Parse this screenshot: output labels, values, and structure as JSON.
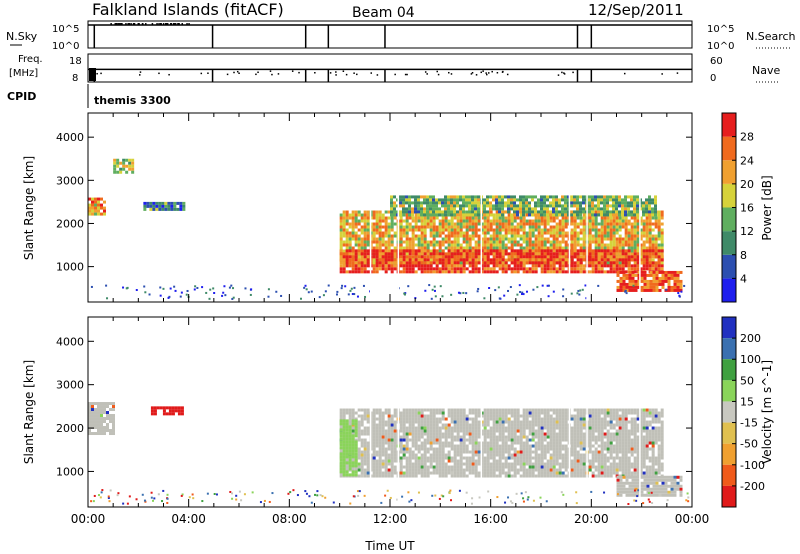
{
  "header": {
    "station": "Falkland Islands (fitACF)",
    "beam": "Beam 04",
    "date": "12/Sep/2011"
  },
  "left_labels": {
    "nsky": "N.Sky",
    "freq_line1": "Freq.",
    "freq_line2": "[MHz]",
    "cpid": "CPID"
  },
  "right_labels": {
    "nsearch": "N.Search",
    "nave": "Nave"
  },
  "noise_panel": {
    "left_ticks": [
      "10^5",
      "10^0"
    ],
    "right_ticks": [
      "10^5",
      "10^0"
    ],
    "sky_value_level": 0.85,
    "sky_dips_hours": [
      0.25,
      4.95,
      8.65,
      9.55,
      11.8,
      19.45,
      20.0
    ]
  },
  "freq_panel": {
    "left_ticks": [
      "18",
      "8"
    ],
    "right_ticks": [
      "60",
      "0"
    ],
    "freq_level": 0.45,
    "nave_level": 0.22,
    "dips_hours": [
      0.25,
      4.95,
      8.65,
      9.55,
      11.8,
      19.45,
      20.0
    ]
  },
  "cpid_panel": {
    "label": "themis 3300"
  },
  "colors": {
    "power": [
      "#1f1fee",
      "#2c4fb0",
      "#3f8a68",
      "#5fae5f",
      "#d6d23a",
      "#f0a030",
      "#f06a1e",
      "#e61e1e"
    ],
    "velocity": [
      "#e01a1a",
      "#f05a1a",
      "#f0a030",
      "#e0c050",
      "#c8c8c0",
      "#8ad45a",
      "#3fa040",
      "#3a70b0",
      "#2030c0"
    ],
    "ground_scatter": "#c0c0b8"
  },
  "chart_data": [
    {
      "type": "heatmap",
      "title": "",
      "xlabel": "Time UT",
      "ylabel": "Slant Range [km]",
      "x_ticks": [
        "00:00",
        "04:00",
        "08:00",
        "12:00",
        "16:00",
        "20:00",
        "00:00"
      ],
      "y_ticks": [
        "1000",
        "2000",
        "3000",
        "4000"
      ],
      "xlim": [
        0,
        24
      ],
      "ylim": [
        180,
        4560
      ],
      "colorbar": {
        "label": "Power [dB]",
        "ticks": [
          "4",
          "8",
          "12",
          "16",
          "20",
          "24",
          "28"
        ],
        "range": [
          0,
          30
        ]
      },
      "regions": [
        {
          "t0": 10.0,
          "t1": 22.8,
          "r0": 1100,
          "r1": 2300,
          "level": 0.65,
          "desc": "main echo band"
        },
        {
          "t0": 10.0,
          "t1": 22.8,
          "r0": 900,
          "r1": 1400,
          "level": 0.9,
          "desc": "strong lower edge"
        },
        {
          "t0": 12.0,
          "t1": 22.5,
          "r0": 2200,
          "r1": 2650,
          "level": 0.45,
          "desc": "upper edge"
        },
        {
          "t0": 21.0,
          "t1": 23.6,
          "r0": 450,
          "r1": 900,
          "level": 0.85,
          "desc": "late low-range echoes"
        },
        {
          "t0": 0.0,
          "t1": 0.6,
          "r0": 2200,
          "r1": 2600,
          "level": 0.7,
          "desc": "early echoes"
        },
        {
          "t0": 1.0,
          "t1": 1.8,
          "r0": 3200,
          "r1": 3500,
          "level": 0.5,
          "desc": "early high-range echoes"
        },
        {
          "t0": 2.2,
          "t1": 3.8,
          "r0": 2300,
          "r1": 2500,
          "level": 0.3,
          "desc": "weak streak"
        }
      ]
    },
    {
      "type": "heatmap",
      "title": "",
      "xlabel": "Time UT",
      "ylabel": "Slant Range [km]",
      "x_ticks": [
        "00:00",
        "04:00",
        "08:00",
        "12:00",
        "16:00",
        "20:00",
        "00:00"
      ],
      "y_ticks": [
        "1000",
        "2000",
        "3000",
        "4000"
      ],
      "xlim": [
        0,
        24
      ],
      "ylim": [
        180,
        4560
      ],
      "colorbar": {
        "label": "Velocity [m s^-1]",
        "ticks": [
          "200",
          "100",
          "50",
          "15",
          "-15",
          "-50",
          "-100",
          "-200"
        ],
        "range": [
          -250,
          250
        ]
      },
      "regions": [
        {
          "t0": 10.0,
          "t1": 22.8,
          "r0": 900,
          "r1": 2450,
          "velocity": 0,
          "ground_scatter": true
        },
        {
          "t0": 21.0,
          "t1": 23.6,
          "r0": 450,
          "r1": 900,
          "velocity": 0,
          "ground_scatter": true
        },
        {
          "t0": 0.0,
          "t1": 1.0,
          "r0": 1900,
          "r1": 2600,
          "velocity": 0,
          "ground_scatter": true
        },
        {
          "t0": 2.5,
          "t1": 3.7,
          "r0": 2350,
          "r1": 2500,
          "velocity": -200
        },
        {
          "t0": 10.0,
          "t1": 10.6,
          "r0": 900,
          "r1": 2200,
          "velocity": 30
        }
      ]
    }
  ]
}
